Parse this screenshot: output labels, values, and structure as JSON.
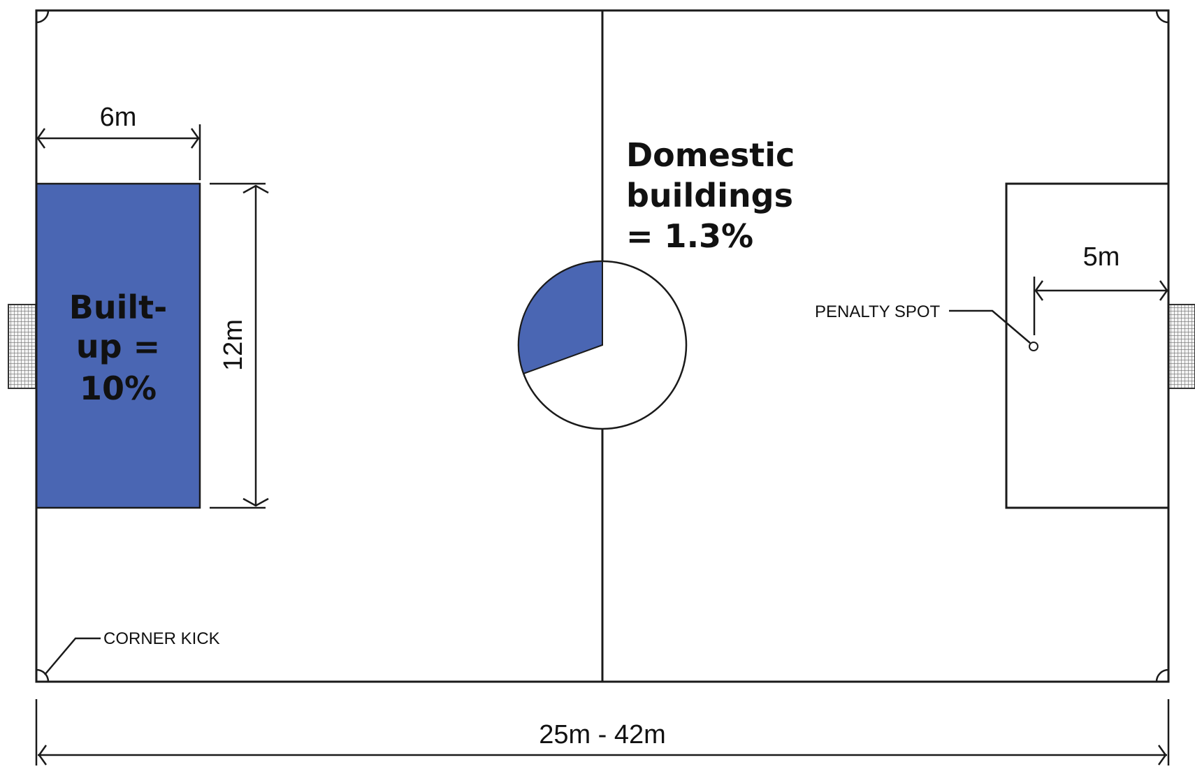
{
  "labels": {
    "builtup_line1": "Built-",
    "builtup_line2": "up =",
    "builtup_line3": "10%",
    "domestic_line1": "Domestic",
    "domestic_line2": "buildings",
    "domestic_line3": "= 1.3%",
    "dim_6m": "6m",
    "dim_12m": "12m",
    "dim_5m": "5m",
    "dim_total": "25m - 42m",
    "penalty_spot": "PENALTY SPOT",
    "corner_kick": "CORNER KICK"
  },
  "values": {
    "builtup_percent": 10,
    "domestic_percent": 1.3
  },
  "colors": {
    "fill_blue": "#4a66b3",
    "line": "#1a1a1a",
    "goal_net": "#8a8a8a"
  }
}
